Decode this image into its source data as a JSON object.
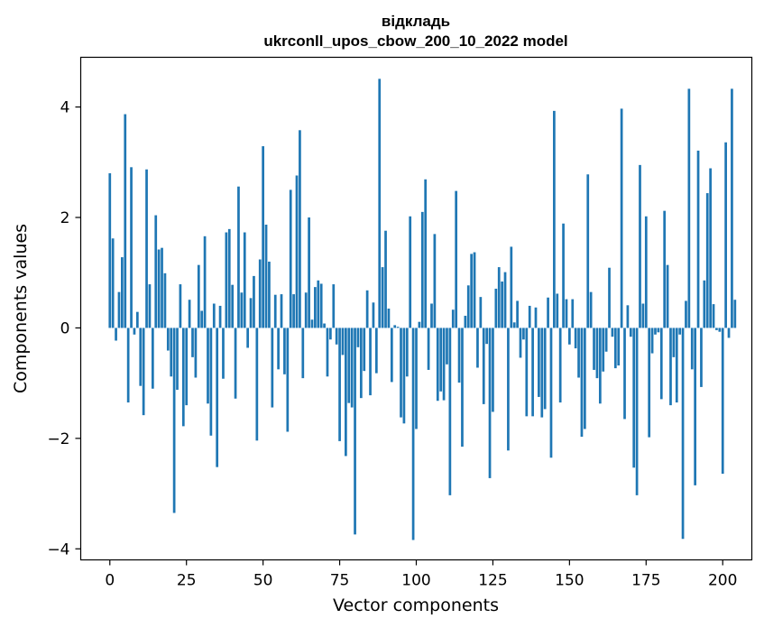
{
  "chart_data": {
    "type": "bar",
    "title_line1": "відкладь",
    "title_line2": "ukrconll_upos_cbow_200_10_2022 model",
    "xlabel": "Vector components",
    "ylabel": "Components values",
    "xlim": [
      -9.5,
      209.5
    ],
    "ylim": [
      -4.2,
      4.9
    ],
    "xticks": [
      0,
      25,
      50,
      75,
      100,
      125,
      150,
      175,
      200
    ],
    "yticks": [
      -4,
      -2,
      0,
      2,
      4
    ],
    "ytick_labels": [
      "−4",
      "−2",
      "0",
      "2",
      "4"
    ],
    "bar_color": "#1f77b4",
    "grid": false,
    "values": [
      2.8,
      1.62,
      -0.23,
      0.65,
      1.28,
      3.87,
      -1.35,
      2.91,
      -0.12,
      0.29,
      -1.05,
      -1.58,
      2.87,
      0.79,
      -1.1,
      2.04,
      1.42,
      1.45,
      0.99,
      -0.41,
      -0.88,
      -3.35,
      -1.12,
      0.79,
      -1.78,
      -1.4,
      0.51,
      -0.53,
      -0.9,
      1.14,
      0.31,
      1.66,
      -1.37,
      -1.95,
      0.44,
      -2.52,
      0.4,
      -0.92,
      1.73,
      1.79,
      0.78,
      -1.28,
      2.56,
      0.64,
      1.73,
      -0.36,
      0.54,
      0.94,
      -2.04,
      1.24,
      3.29,
      1.87,
      1.2,
      -1.44,
      0.6,
      -0.75,
      0.61,
      -0.84,
      -1.88,
      2.5,
      0.61,
      2.76,
      3.58,
      -0.91,
      0.64,
      2.0,
      0.15,
      0.74,
      0.86,
      0.8,
      0.08,
      -0.88,
      -0.21,
      0.79,
      -0.3,
      -2.05,
      -0.49,
      -2.32,
      -1.36,
      -1.44,
      -3.74,
      -0.35,
      -1.27,
      -0.78,
      0.68,
      -1.22,
      0.46,
      -0.82,
      4.51,
      1.1,
      1.76,
      0.35,
      -0.98,
      0.05,
      0.02,
      -1.62,
      -1.73,
      -0.88,
      2.02,
      -3.84,
      -1.83,
      0.11,
      2.1,
      2.69,
      -0.76,
      0.44,
      1.7,
      -1.32,
      -1.15,
      -1.31,
      -0.66,
      -3.03,
      0.33,
      2.48,
      -0.99,
      -2.15,
      0.22,
      0.77,
      1.34,
      1.37,
      -0.72,
      0.56,
      -1.38,
      -0.29,
      -2.72,
      -1.52,
      0.71,
      1.1,
      0.84,
      1.01,
      -2.22,
      1.47,
      0.1,
      0.49,
      -0.54,
      -0.21,
      -1.6,
      0.4,
      -1.6,
      0.37,
      -1.25,
      -1.62,
      -1.47,
      0.55,
      -2.35,
      3.93,
      0.62,
      -1.35,
      1.89,
      0.52,
      -0.3,
      0.52,
      -0.37,
      -0.9,
      -1.97,
      -1.83,
      2.78,
      0.65,
      -0.76,
      -0.91,
      -1.37,
      -0.79,
      -0.43,
      1.09,
      -0.16,
      -0.73,
      -0.68,
      3.97,
      -1.65,
      0.41,
      -0.16,
      -2.53,
      -3.03,
      2.95,
      0.44,
      2.02,
      -1.98,
      -0.46,
      -0.12,
      -0.08,
      -1.29,
      2.12,
      1.14,
      -1.4,
      -0.53,
      -1.35,
      -0.12,
      -3.82,
      0.49,
      4.33,
      -0.75,
      -2.85,
      3.21,
      -1.07,
      0.86,
      2.44,
      2.89,
      0.43,
      -0.04,
      -0.07,
      -2.64,
      3.36,
      -0.18,
      4.33,
      0.51
    ]
  }
}
